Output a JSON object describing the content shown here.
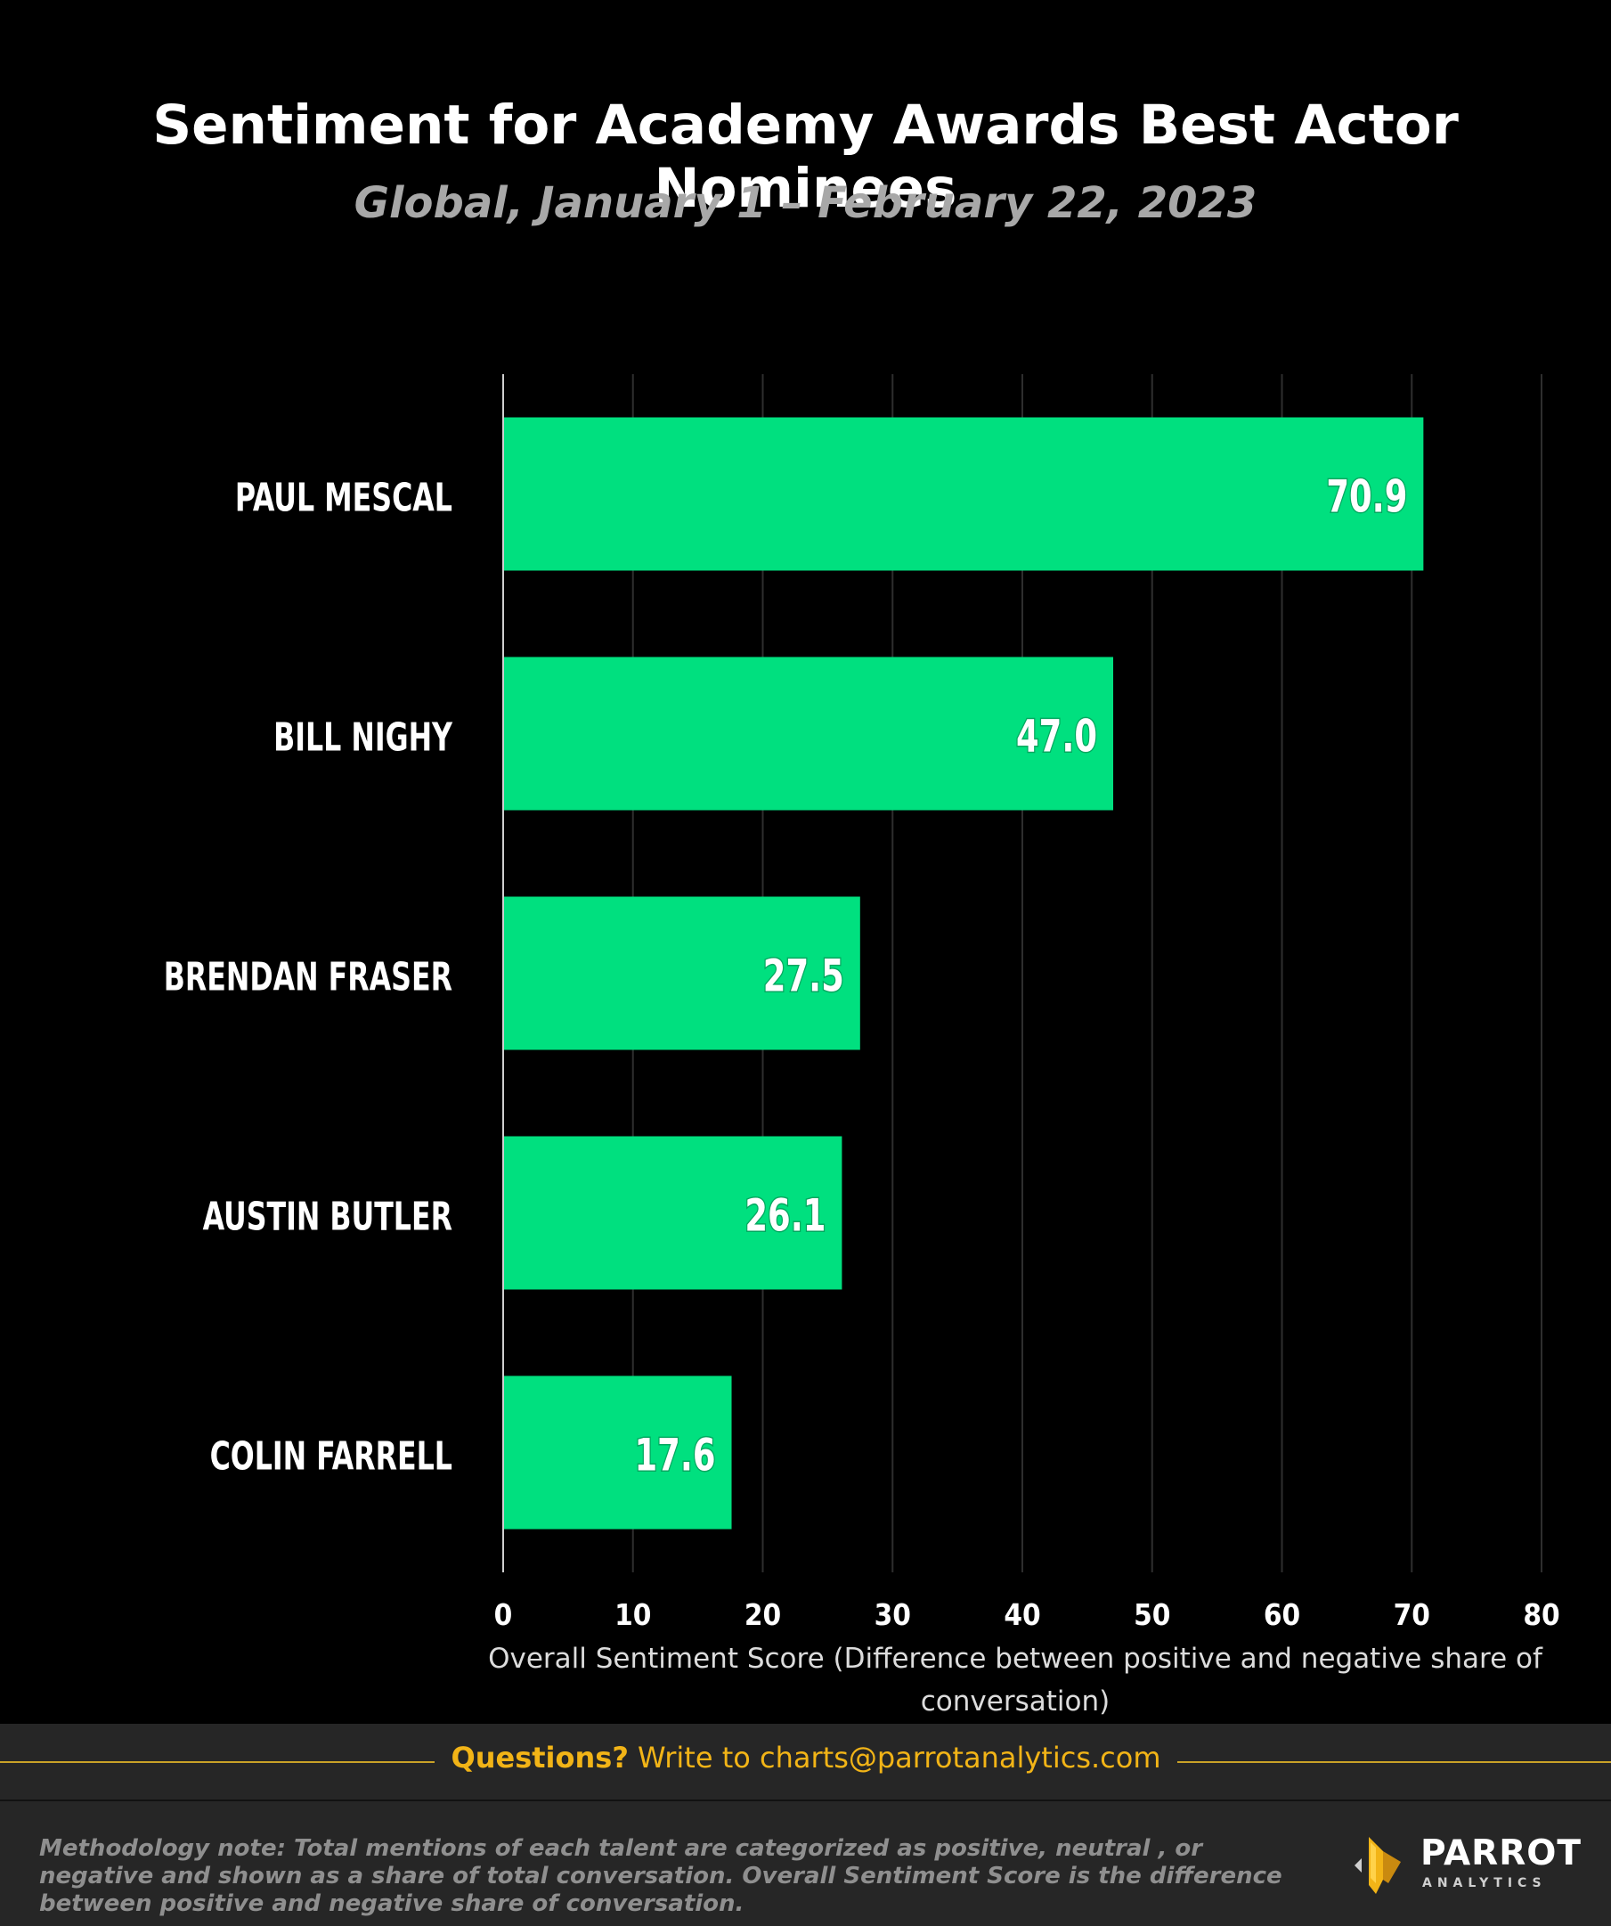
{
  "header": {
    "title": "Sentiment for Academy Awards Best Actor Nominees",
    "subtitle": "Global, January 1 – February 22, 2023"
  },
  "chart_data": {
    "type": "bar",
    "orientation": "horizontal",
    "categories": [
      "PAUL MESCAL",
      "BILL NIGHY",
      "BRENDAN FRASER",
      "AUSTIN BUTLER",
      "COLIN FARRELL"
    ],
    "values": [
      70.9,
      47.0,
      27.5,
      26.1,
      17.6
    ],
    "value_labels": [
      "70.9",
      "47.0",
      "27.5",
      "26.1",
      "17.6"
    ],
    "xlabel": "Overall Sentiment Score (Difference between positive and negative share of conversation)",
    "xlim": [
      0,
      80
    ],
    "xticks": [
      0,
      10,
      20,
      30,
      40,
      50,
      60,
      70,
      80
    ],
    "grid": "vertical",
    "bar_color": "#00e07f"
  },
  "footer": {
    "questions_strong": "Questions?",
    "questions_rest": " Write to charts@parrotanalytics.com",
    "methodology": "Methodology note: Total mentions of each talent are categorized as positive, neutral , or negative and shown as a share of total conversation.  Overall Sentiment Score is the difference between positive and negative share of conversation.",
    "logo_word": "PARROT",
    "logo_sub": "ANALYTICS"
  },
  "colors": {
    "background": "#000000",
    "accent": "#f2b417",
    "bar": "#00e07f"
  }
}
